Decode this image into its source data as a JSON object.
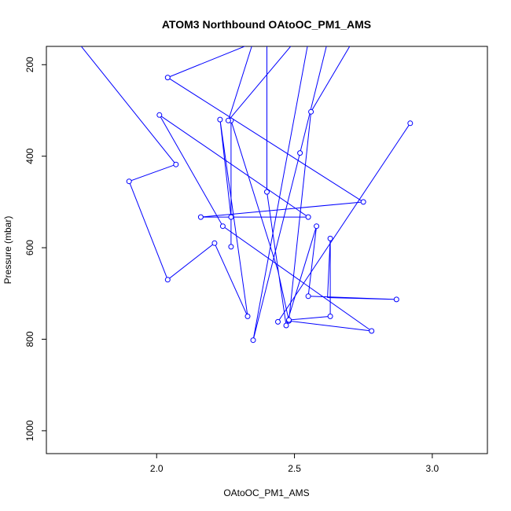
{
  "chart_data": {
    "type": "line",
    "title": "ATOM3 Northbound OAtoOC_PM1_AMS",
    "xlabel": "OAtoOC_PM1_AMS",
    "ylabel": "Pressure (mbar)",
    "xlim": [
      1.6,
      3.2
    ],
    "ylim": [
      1050,
      160
    ],
    "y_reversed": true,
    "x_ticks": [
      "2.0",
      "2.5",
      "3.0"
    ],
    "y_ticks": [
      "200",
      "400",
      "600",
      "800",
      "1000"
    ],
    "marker": "open-circle",
    "series_color": "#0000ff",
    "series": [
      {
        "points": [
          {
            "x": 1.62,
            "y": 80,
            "marker": false
          },
          {
            "x": 2.07,
            "y": 418,
            "marker": true
          },
          {
            "x": 1.9,
            "y": 455,
            "marker": true
          },
          {
            "x": 2.04,
            "y": 670,
            "marker": true
          },
          {
            "x": 2.21,
            "y": 590,
            "marker": true
          },
          {
            "x": 2.33,
            "y": 750,
            "marker": true
          },
          {
            "x": 2.23,
            "y": 320,
            "marker": true
          },
          {
            "x": 2.27,
            "y": 533,
            "marker": true
          },
          {
            "x": 2.27,
            "y": 598,
            "marker": true
          },
          {
            "x": 2.27,
            "y": 322,
            "marker": true
          },
          {
            "x": 2.44,
            "y": 650,
            "marker": false
          },
          {
            "x": 2.48,
            "y": 760,
            "marker": true
          },
          {
            "x": 2.78,
            "y": 782,
            "marker": true
          },
          {
            "x": 2.24,
            "y": 553,
            "marker": true
          },
          {
            "x": 2.01,
            "y": 310,
            "marker": true
          },
          {
            "x": 2.55,
            "y": 533,
            "marker": true
          },
          {
            "x": 2.16,
            "y": 533,
            "marker": true
          },
          {
            "x": 2.75,
            "y": 500,
            "marker": true
          },
          {
            "x": 2.04,
            "y": 228,
            "marker": true
          },
          {
            "x": 2.36,
            "y": 150,
            "marker": false
          },
          {
            "x": 2.4,
            "y": 150,
            "marker": false
          },
          {
            "x": 2.4,
            "y": 478,
            "marker": true
          },
          {
            "x": 2.47,
            "y": 770,
            "marker": true
          },
          {
            "x": 2.58,
            "y": 553,
            "marker": true
          },
          {
            "x": 2.55,
            "y": 706,
            "marker": true
          },
          {
            "x": 2.87,
            "y": 713,
            "marker": true
          },
          {
            "x": 2.62,
            "y": 709,
            "marker": false
          },
          {
            "x": 2.63,
            "y": 580,
            "marker": true
          },
          {
            "x": 2.63,
            "y": 750,
            "marker": true
          },
          {
            "x": 2.48,
            "y": 758,
            "marker": true
          },
          {
            "x": 2.56,
            "y": 303,
            "marker": true
          },
          {
            "x": 2.71,
            "y": 150,
            "marker": false
          },
          {
            "x": 2.55,
            "y": 150,
            "marker": false
          },
          {
            "x": 2.35,
            "y": 802,
            "marker": true
          },
          {
            "x": 2.52,
            "y": 393,
            "marker": true
          },
          {
            "x": 2.62,
            "y": 150,
            "marker": false
          },
          {
            "x": 2.5,
            "y": 150,
            "marker": false
          },
          {
            "x": 2.26,
            "y": 322,
            "marker": true
          },
          {
            "x": 2.35,
            "y": 150,
            "marker": false
          },
          {
            "x": 2.4,
            "y": 150,
            "marker": false
          }
        ]
      },
      {
        "points": [
          {
            "x": 2.92,
            "y": 328,
            "marker": true
          },
          {
            "x": 2.44,
            "y": 762,
            "marker": true
          }
        ]
      }
    ]
  }
}
